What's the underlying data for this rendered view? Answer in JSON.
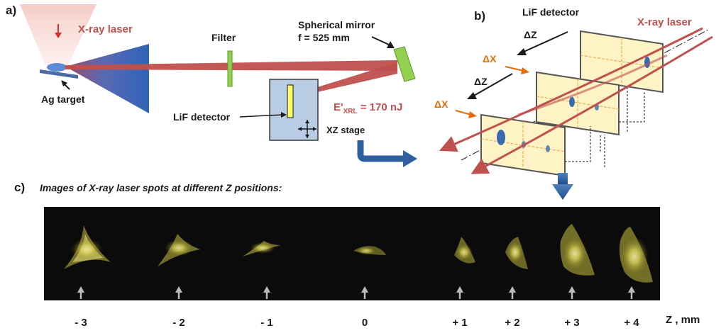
{
  "panel_a": {
    "label": "a)",
    "xray_laser": "X-ray laser",
    "filter": "Filter",
    "mirror_line1": "Spherical mirror",
    "mirror_line2": "f = 525 mm",
    "target": "Ag  target",
    "detector": "LiF detector",
    "energy_prefix": "E'",
    "energy_sub": "XRL",
    "energy_value": " = 170 nJ",
    "stage": "XZ stage"
  },
  "panel_b": {
    "label": "b)",
    "detector": "LiF detector",
    "xray_laser": "X-ray laser",
    "dz1": "ΔZ",
    "dz2": "ΔZ",
    "dx1": "ΔX",
    "dx2": "ΔX"
  },
  "panel_c": {
    "label": "c)",
    "caption": "Images of X-ray laser spots at different Z positions:",
    "axis_label": "Z  , mm",
    "positions": [
      "- 3",
      "- 2",
      "- 1",
      "0",
      "+ 1",
      "+ 2",
      "+ 3",
      "+ 4"
    ]
  },
  "colors": {
    "beam": "#c0504d",
    "cone": "#3a6ab0",
    "filter": "#92d050",
    "delta": "#e36c0a",
    "spot": "#e8e060"
  }
}
